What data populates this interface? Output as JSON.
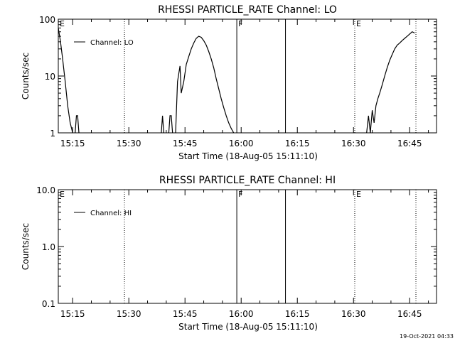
{
  "chart_data": [
    {
      "type": "line",
      "title": "RHESSI PARTICLE_RATE Channel: LO",
      "xlabel": "Start Time (18-Aug-05 15:11:10)",
      "ylabel": "Counts/sec",
      "y_scale": "log",
      "ylim": [
        1,
        100
      ],
      "xlim": [
        "15:11:10",
        "16:52:10"
      ],
      "x_ticks": [
        "15:15",
        "15:30",
        "15:45",
        "16:00",
        "16:15",
        "16:30",
        "16:45"
      ],
      "y_ticks": [
        "1",
        "10",
        "100"
      ],
      "legend": {
        "position": "top-left",
        "entries": [
          "Channel: LO"
        ]
      },
      "annotations": [
        {
          "text": "E",
          "x": "15:11:10"
        },
        {
          "text": "F",
          "x": "15:58:50"
        },
        {
          "text": "E",
          "x": "16:30:20"
        }
      ],
      "markers": [
        {
          "x": "15:28:50",
          "style": "dotted"
        },
        {
          "x": "15:58:50",
          "style": "solid"
        },
        {
          "x": "16:11:50",
          "style": "solid"
        },
        {
          "x": "16:30:20",
          "style": "dotted"
        },
        {
          "x": "16:46:40",
          "style": "dotted"
        }
      ],
      "series": [
        {
          "segments": [
            {
              "x": [
                "15:11:10",
                "15:11:45",
                "15:12:20",
                "15:13:00",
                "15:13:40",
                "15:14:20",
                "15:15:00"
              ],
              "y": [
                70,
                40,
                20,
                8,
                3,
                1.5,
                1
              ]
            },
            {
              "x": [
                "15:15:40",
                "15:16:00",
                "15:16:20",
                "15:16:40"
              ],
              "y": [
                1,
                2,
                2,
                1
              ]
            },
            {
              "x": [
                "15:38:40",
                "15:39:00",
                "15:39:20"
              ],
              "y": [
                1,
                2,
                1
              ]
            },
            {
              "x": [
                "15:40:40",
                "15:41:00",
                "15:41:20",
                "15:41:40"
              ],
              "y": [
                1,
                2,
                2,
                1
              ]
            },
            {
              "x": [
                "15:42:30",
                "15:43:00",
                "15:43:40",
                "15:44:00",
                "15:44:40",
                "15:45:20",
                "15:46:00",
                "15:46:40",
                "15:47:20",
                "15:48:00",
                "15:48:40",
                "15:49:20",
                "15:50:00",
                "15:50:40",
                "15:51:20",
                "15:52:00",
                "15:52:40",
                "15:53:20",
                "15:54:00",
                "15:54:40",
                "15:55:20",
                "15:56:00",
                "15:56:40",
                "15:57:20",
                "15:58:00"
              ],
              "y": [
                1,
                8,
                15,
                5,
                8,
                16,
                22,
                30,
                38,
                46,
                50,
                48,
                42,
                35,
                27,
                20,
                14,
                9,
                6,
                4,
                2.8,
                2,
                1.5,
                1.2,
                1
              ]
            },
            {
              "x": [
                "16:33:30",
                "16:34:00",
                "16:34:30",
                "16:35:00",
                "16:35:30",
                "16:36:00",
                "16:36:30",
                "16:37:00",
                "16:37:40",
                "16:38:20",
                "16:39:00",
                "16:39:40",
                "16:40:20",
                "16:41:00",
                "16:41:40",
                "16:42:20",
                "16:43:00",
                "16:43:40",
                "16:44:20",
                "16:45:00",
                "16:45:40",
                "16:46:20"
              ],
              "y": [
                1,
                2,
                1,
                2.5,
                1.5,
                3,
                4,
                5,
                7,
                10,
                14,
                19,
                24,
                30,
                35,
                38,
                42,
                46,
                50,
                55,
                60,
                57
              ]
            }
          ]
        }
      ]
    },
    {
      "type": "line",
      "title": "RHESSI PARTICLE_RATE Channel: HI",
      "xlabel": "Start Time (18-Aug-05 15:11:10)",
      "ylabel": "Counts/sec",
      "y_scale": "log",
      "ylim": [
        0.1,
        10
      ],
      "xlim": [
        "15:11:10",
        "16:52:10"
      ],
      "x_ticks": [
        "15:15",
        "15:30",
        "15:45",
        "16:00",
        "16:15",
        "16:30",
        "16:45"
      ],
      "y_ticks": [
        "0.1",
        "1.0",
        "10.0"
      ],
      "legend": {
        "position": "top-left",
        "entries": [
          "Channel: HI"
        ]
      },
      "annotations": [
        {
          "text": "E",
          "x": "15:11:10"
        },
        {
          "text": "F",
          "x": "15:58:50"
        },
        {
          "text": "E",
          "x": "16:30:20"
        }
      ],
      "markers": [
        {
          "x": "15:28:50",
          "style": "dotted"
        },
        {
          "x": "15:58:50",
          "style": "solid"
        },
        {
          "x": "16:11:50",
          "style": "solid"
        },
        {
          "x": "16:30:20",
          "style": "dotted"
        },
        {
          "x": "16:46:40",
          "style": "dotted"
        }
      ],
      "series": [
        {
          "segments": []
        }
      ]
    }
  ],
  "footer": {
    "timestamp": "19-Oct-2021 04:33"
  }
}
